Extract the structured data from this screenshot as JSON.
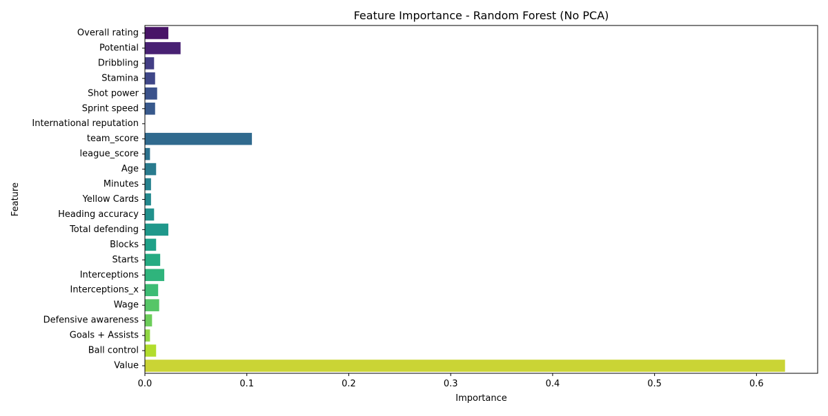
{
  "chart_data": {
    "type": "bar",
    "orientation": "horizontal",
    "title": "Feature Importance - Random Forest (No PCA)",
    "xlabel": "Importance",
    "ylabel": "Feature",
    "xlim": [
      0,
      0.66
    ],
    "xticks": [
      0.0,
      0.1,
      0.2,
      0.3,
      0.4,
      0.5,
      0.6
    ],
    "xtick_labels": [
      "0.0",
      "0.1",
      "0.2",
      "0.3",
      "0.4",
      "0.5",
      "0.6"
    ],
    "grid": false,
    "palette": "viridis",
    "categories": [
      "Overall rating",
      "Potential",
      "Dribbling",
      "Stamina",
      "Shot power",
      "Sprint speed",
      "International reputation",
      "team_score",
      "league_score",
      "Age",
      "Minutes",
      "Yellow Cards",
      "Heading accuracy",
      "Total defending",
      "Blocks",
      "Starts",
      "Interceptions",
      "Interceptions_x",
      "Wage",
      "Defensive awareness",
      "Goals + Assists",
      "Ball control",
      "Value"
    ],
    "values": [
      0.023,
      0.035,
      0.009,
      0.01,
      0.012,
      0.01,
      0.0,
      0.105,
      0.005,
      0.011,
      0.006,
      0.006,
      0.009,
      0.023,
      0.011,
      0.015,
      0.019,
      0.013,
      0.014,
      0.007,
      0.005,
      0.011,
      0.628
    ],
    "colors": [
      "#481467",
      "#482173",
      "#433e85",
      "#3f4788",
      "#3b528b",
      "#38598c",
      "#33638d",
      "#306a8e",
      "#2c728e",
      "#297b8e",
      "#26828e",
      "#23898e",
      "#21918c",
      "#1f988b",
      "#1fa188",
      "#25ab82",
      "#2fb47c",
      "#3dbc74",
      "#56c667",
      "#6ccd5a",
      "#90d743",
      "#b2dd2d",
      "#cad435"
    ]
  }
}
